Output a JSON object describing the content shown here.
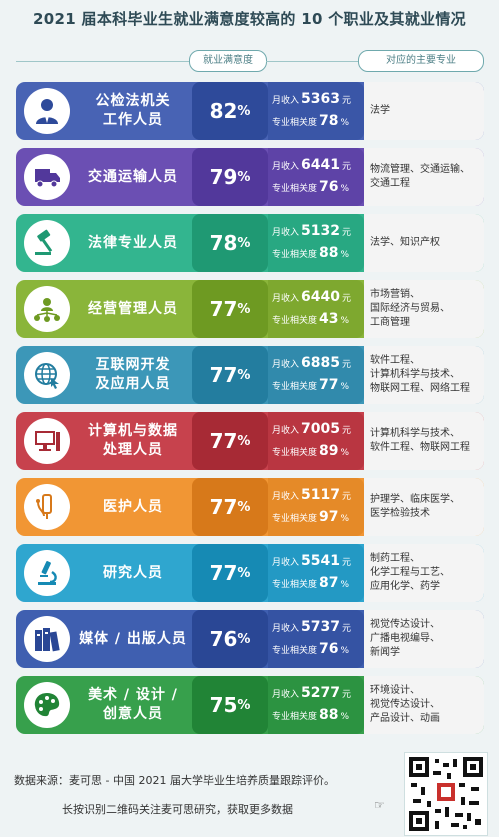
{
  "title": "2021 届本科毕业生就业满意度较高的 10 个职业及其就业情况",
  "headers": {
    "satisfaction": "就业满意度",
    "majors": "对应的主要专业"
  },
  "labels": {
    "income": "月收入",
    "relevance": "专业相关度",
    "currency": "元",
    "percent": "%"
  },
  "rows": [
    {
      "job": "公检法机关\n工作人员",
      "sat": "82",
      "income": "5363",
      "rel": "78",
      "majors": "法学",
      "icon": "person-tie-icon",
      "colors": {
        "bg": "#4863b4",
        "sat": "#2e4a9a",
        "stats": "#3a56a7"
      }
    },
    {
      "job": "交通运输人员",
      "sat": "79",
      "income": "6441",
      "rel": "76",
      "majors": "物流管理、交通运输、\n交通工程",
      "icon": "truck-icon",
      "colors": {
        "bg": "#6b4fb3",
        "sat": "#52389b",
        "stats": "#5e43a7"
      }
    },
    {
      "job": "法律专业人员",
      "sat": "78",
      "income": "5132",
      "rel": "88",
      "majors": "法学、知识产权",
      "icon": "gavel-icon",
      "colors": {
        "bg": "#33b58f",
        "sat": "#1f9973",
        "stats": "#28a882"
      }
    },
    {
      "job": "经营管理人员",
      "sat": "77",
      "income": "6440",
      "rel": "43",
      "majors": "市场营销、\n国际经济与贸易、\n工商管理",
      "icon": "network-person-icon",
      "colors": {
        "bg": "#8ab53a",
        "sat": "#6e9a22",
        "stats": "#7ea82f"
      }
    },
    {
      "job": "互联网开发\n及应用人员",
      "sat": "77",
      "income": "6885",
      "rel": "77",
      "majors": "软件工程、\n计算机科学与技术、\n物联网工程、网络工程",
      "icon": "globe-cursor-icon",
      "colors": {
        "bg": "#3c97b8",
        "sat": "#237d9f",
        "stats": "#318aac"
      }
    },
    {
      "job": "计算机与数据\n处理人员",
      "sat": "77",
      "income": "7005",
      "rel": "89",
      "majors": "计算机科学与技术、\n软件工程、物联网工程",
      "icon": "computer-icon",
      "colors": {
        "bg": "#c7424d",
        "sat": "#a72a35",
        "stats": "#b93641"
      }
    },
    {
      "job": "医护人员",
      "sat": "77",
      "income": "5117",
      "rel": "97",
      "majors": "护理学、临床医学、\n医学检验技术",
      "icon": "medical-tools-icon",
      "colors": {
        "bg": "#f19634",
        "sat": "#d7791a",
        "stats": "#e58a28"
      }
    },
    {
      "job": "研究人员",
      "sat": "77",
      "income": "5541",
      "rel": "87",
      "majors": "制药工程、\n化学工程与工艺、\n应用化学、药学",
      "icon": "microscope-icon",
      "colors": {
        "bg": "#2fa6cf",
        "sat": "#168ab4",
        "stats": "#2399c4"
      }
    },
    {
      "job": "媒体 / 出版人员",
      "sat": "76",
      "income": "5737",
      "rel": "76",
      "majors": "视觉传达设计、\n广播电视编导、\n新闻学",
      "icon": "books-icon",
      "colors": {
        "bg": "#3f5fb0",
        "sat": "#2a4795",
        "stats": "#3553a3"
      }
    },
    {
      "job": "美术 / 设计 /\n创意人员",
      "sat": "75",
      "income": "5277",
      "rel": "88",
      "majors": "环境设计、\n视觉传达设计、\n产品设计、动画",
      "icon": "palette-icon",
      "colors": {
        "bg": "#37a04c",
        "sat": "#218436",
        "stats": "#2c9341"
      }
    }
  ],
  "footer": {
    "source": "数据来源：麦可思 - 中国 2021 届大学毕业生培养质量跟踪评价。",
    "cta": "长按识别二维码关注麦可思研究，获取更多数据",
    "hand": "☞"
  }
}
